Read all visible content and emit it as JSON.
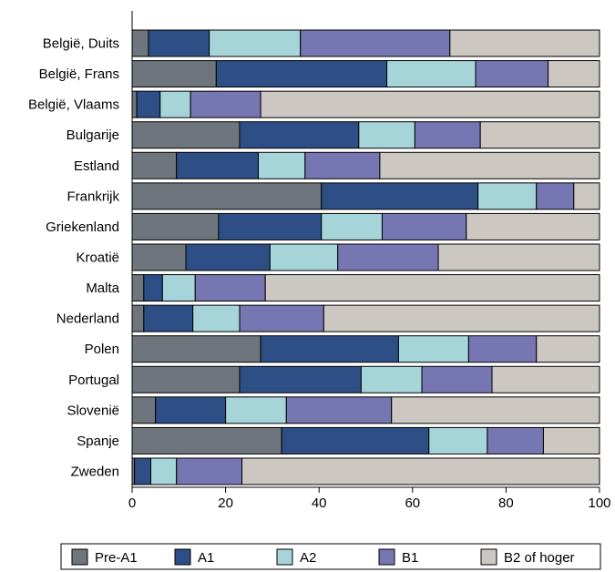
{
  "chart_data": {
    "type": "bar",
    "orientation": "horizontal",
    "stacked": true,
    "categories": [
      "België, Duits",
      "België, Frans",
      "België, Vlaams",
      "Bulgarije",
      "Estland",
      "Frankrijk",
      "Griekenland",
      "Kroatië",
      "Malta",
      "Nederland",
      "Polen",
      "Portugal",
      "Slovenië",
      "Spanje",
      "Zweden"
    ],
    "series": [
      {
        "name": "Pre-A1",
        "color": "#6e757c",
        "values": [
          3.5,
          18,
          1,
          23,
          9.5,
          40.5,
          18.5,
          11.5,
          2.5,
          2.5,
          27.5,
          23,
          5,
          32,
          0.5
        ]
      },
      {
        "name": "A1",
        "color": "#2e4e86",
        "values": [
          13,
          36.5,
          5,
          25.5,
          17.5,
          33.5,
          22,
          18,
          4,
          10.5,
          29.5,
          26,
          15,
          31.5,
          3.5
        ]
      },
      {
        "name": "A2",
        "color": "#a5d5d8",
        "values": [
          19.5,
          19,
          6.5,
          12,
          10,
          12.5,
          13,
          14.5,
          7,
          10,
          15,
          13,
          13,
          12.5,
          5.5
        ]
      },
      {
        "name": "B1",
        "color": "#7676b3",
        "values": [
          32,
          15.5,
          15,
          14,
          16,
          8,
          18,
          21.5,
          15,
          18,
          14.5,
          15,
          22.5,
          12,
          14
        ]
      },
      {
        "name": "B2 of hoger",
        "color": "#ccc7c1",
        "values": [
          32,
          11,
          72.5,
          25.5,
          47,
          5.5,
          28.5,
          34.5,
          71.5,
          59,
          13.5,
          23,
          44.5,
          12,
          76.5
        ]
      }
    ],
    "xlim": [
      0,
      100
    ],
    "xticks": [
      0,
      20,
      40,
      60,
      80,
      100
    ],
    "xtick_labels": [
      "0",
      "20",
      "40",
      "60",
      "80",
      "100"
    ],
    "legend": {
      "position": "bottom",
      "entries": [
        "Pre-A1",
        "A1",
        "A2",
        "B1",
        "B2 of hoger"
      ]
    },
    "grid": false
  }
}
